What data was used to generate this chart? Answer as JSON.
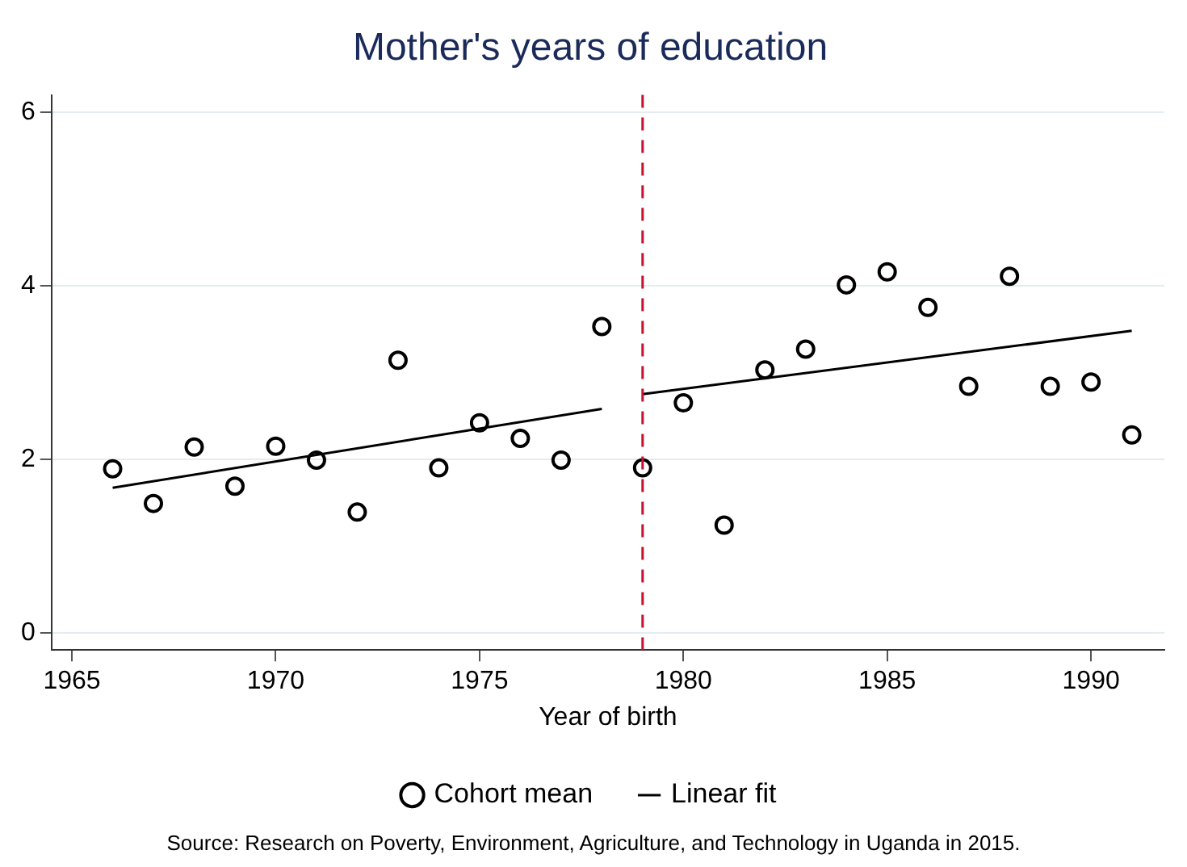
{
  "chart_data": {
    "type": "scatter",
    "title": "Mother's years of education",
    "xlabel": "Year of birth",
    "x": [
      1966,
      1967,
      1968,
      1969,
      1970,
      1971,
      1972,
      1973,
      1974,
      1975,
      1976,
      1977,
      1978,
      1979,
      1980,
      1981,
      1982,
      1983,
      1984,
      1985,
      1986,
      1987,
      1988,
      1989,
      1990,
      1991
    ],
    "series": [
      {
        "name": "Cohort mean",
        "marker": "circle",
        "color": "#000000",
        "values": [
          1.89,
          1.49,
          2.14,
          1.69,
          2.15,
          1.99,
          1.39,
          3.14,
          1.9,
          2.42,
          2.24,
          1.99,
          3.53,
          1.9,
          2.65,
          1.24,
          3.03,
          3.27,
          4.01,
          4.16,
          3.75,
          2.84,
          4.11,
          2.84,
          2.89,
          2.28
        ]
      },
      {
        "name": "Linear fit",
        "type": "line",
        "marker": "none",
        "line_style": "solid",
        "color": "#000000",
        "x": [
          1966,
          1978,
          1978.5,
          1979,
          1991
        ],
        "values": [
          1.67,
          2.58,
          null,
          2.75,
          3.48
        ]
      }
    ],
    "xlim": [
      1964.5,
      1991.8
    ],
    "xticks": [
      1965,
      1970,
      1975,
      1980,
      1985,
      1990
    ],
    "ylim": [
      -0.2,
      6.2
    ],
    "yticks": [
      0,
      2,
      4,
      6
    ],
    "grid": "y",
    "legend": "bottom",
    "ref_lines": [
      {
        "axis": "x",
        "value": 1979,
        "color": "#c8102e",
        "line_style": "dashed"
      }
    ],
    "annotations": [
      "Source: Research on Poverty, Environment, Agriculture, and Technology in Uganda in 2015."
    ]
  }
}
